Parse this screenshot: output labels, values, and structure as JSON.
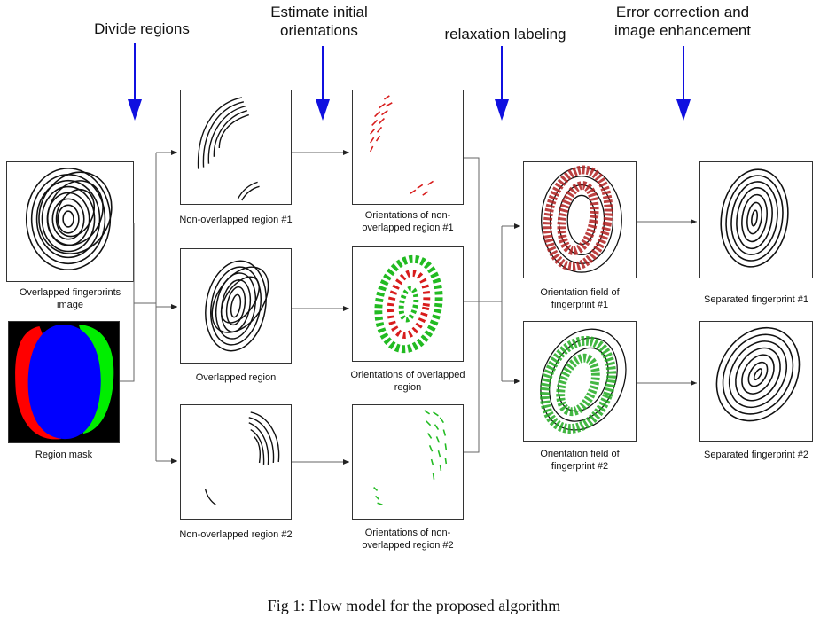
{
  "steps": {
    "divide": [
      "Divide regions"
    ],
    "estimate": [
      "Estimate initial",
      "orientations"
    ],
    "relax": [
      "relaxation labeling"
    ],
    "correct": [
      "Error correction and",
      "image enhancement"
    ]
  },
  "captions": {
    "overlapped_input": [
      "Overlapped fingerprints",
      "image"
    ],
    "region_mask": [
      "Region mask"
    ],
    "nonoverlap1": [
      "Non-overlapped region #1"
    ],
    "overlap": [
      "Overlapped region"
    ],
    "nonoverlap2": [
      "Non-overlapped region #2"
    ],
    "orient_nonoverlap1": [
      "Orientations of non-",
      "overlapped region #1"
    ],
    "orient_overlap": [
      "Orientations of overlapped",
      "region"
    ],
    "orient_nonoverlap2": [
      "Orientations of non-",
      "overlapped region #2"
    ],
    "field1": [
      "Orientation field of",
      "fingerprint #1"
    ],
    "field2": [
      "Orientation field of",
      "fingerprint #2"
    ],
    "sep1": [
      "Separated fingerprint #1"
    ],
    "sep2": [
      "Separated fingerprint #2"
    ]
  },
  "figure_caption": "Fig 1: Flow model for the proposed algorithm",
  "colors": {
    "arrow_blue": "#1010e0",
    "mask_red": "#ff0000",
    "mask_green": "#00ee00",
    "mask_blue": "#0000ff",
    "orient_red": "#d81c1c",
    "orient_green": "#22bb22",
    "ridge": "#111111"
  },
  "icons": {
    "step_arrow": "down-arrow-icon",
    "flow_arrow": "right-arrow-icon"
  }
}
